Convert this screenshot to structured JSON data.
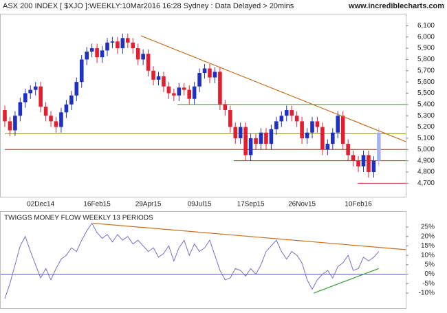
{
  "header": {
    "title": "ASX 200 INDEX [ $XJO ]:WEEKLY:10Mar2016 16:28 Sydney : Data Delayed > 20mins",
    "site": "www.incrediblecharts.com"
  },
  "chart_data": [
    {
      "type": "candlestick",
      "categories": [
        null,
        null,
        null,
        null,
        null,
        null,
        null,
        "02Dec14",
        null,
        null,
        null,
        null,
        null,
        null,
        null,
        null,
        null,
        null,
        "16Feb15",
        null,
        null,
        null,
        null,
        null,
        null,
        null,
        null,
        null,
        "29Apr15",
        null,
        null,
        null,
        null,
        null,
        null,
        null,
        null,
        null,
        "09Jul15",
        null,
        null,
        null,
        null,
        null,
        null,
        null,
        null,
        null,
        "17Sep15",
        null,
        null,
        null,
        null,
        null,
        null,
        null,
        null,
        null,
        "26Nov15",
        null,
        null,
        null,
        null,
        null,
        null,
        null,
        null,
        null,
        null,
        "10Feb16",
        null,
        null,
        null,
        null
      ],
      "open": [
        5350,
        5250,
        5170,
        5300,
        5420,
        5500,
        5530,
        5560,
        5380,
        5300,
        5250,
        5200,
        5330,
        5400,
        5480,
        5600,
        5800,
        5870,
        5900,
        5820,
        5880,
        5950,
        5960,
        5900,
        5990,
        5950,
        5900,
        5800,
        5850,
        5700,
        5620,
        5650,
        5560,
        5500,
        5480,
        5550,
        5530,
        5450,
        5560,
        5680,
        5720,
        5640,
        5690,
        5400,
        5350,
        5200,
        5100,
        5200,
        4950,
        5100,
        5050,
        5150,
        5050,
        5180,
        5250,
        5300,
        5350,
        5300,
        5250,
        5100,
        5150,
        5250,
        5200,
        5000,
        5050,
        5150,
        5300,
        5050,
        4950,
        4900,
        4850,
        4950,
        4800,
        4900
      ],
      "high": [
        5390,
        5290,
        5340,
        5460,
        5540,
        5570,
        5600,
        5600,
        5420,
        5340,
        5290,
        5370,
        5440,
        5520,
        5640,
        5840,
        5910,
        5940,
        5940,
        5920,
        5990,
        6000,
        6000,
        6030,
        6030,
        5990,
        5940,
        5890,
        5890,
        5740,
        5690,
        5690,
        5600,
        5540,
        5590,
        5590,
        5570,
        5600,
        5720,
        5760,
        5760,
        5730,
        5730,
        5440,
        5390,
        5240,
        5240,
        5240,
        5140,
        5140,
        5190,
        5190,
        5220,
        5290,
        5340,
        5390,
        5390,
        5340,
        5290,
        5190,
        5290,
        5290,
        5240,
        5090,
        5190,
        5340,
        5340,
        5090,
        4990,
        4940,
        4990,
        4990,
        4940,
        5190
      ],
      "low": [
        5200,
        5120,
        5120,
        5250,
        5370,
        5450,
        5480,
        5330,
        5250,
        5200,
        5150,
        5150,
        5280,
        5350,
        5430,
        5550,
        5750,
        5820,
        5770,
        5770,
        5830,
        5900,
        5850,
        5850,
        5900,
        5850,
        5750,
        5750,
        5650,
        5570,
        5570,
        5510,
        5450,
        5430,
        5430,
        5480,
        5400,
        5400,
        5510,
        5630,
        5590,
        5590,
        5350,
        5300,
        5150,
        5050,
        5050,
        4900,
        4900,
        5000,
        5000,
        5000,
        5000,
        5130,
        5200,
        5250,
        5250,
        5200,
        5050,
        5050,
        5100,
        5150,
        4950,
        4950,
        5000,
        5100,
        5000,
        4900,
        4850,
        4800,
        4800,
        4750,
        4750,
        4850
      ],
      "close": [
        5250,
        5170,
        5300,
        5420,
        5500,
        5530,
        5560,
        5380,
        5300,
        5250,
        5200,
        5330,
        5400,
        5480,
        5600,
        5800,
        5870,
        5900,
        5820,
        5880,
        5950,
        5960,
        5900,
        5990,
        5950,
        5900,
        5800,
        5850,
        5700,
        5620,
        5650,
        5560,
        5500,
        5480,
        5550,
        5530,
        5450,
        5560,
        5680,
        5720,
        5640,
        5690,
        5400,
        5350,
        5200,
        5100,
        5200,
        4950,
        5100,
        5050,
        5150,
        5050,
        5180,
        5250,
        5300,
        5350,
        5300,
        5250,
        5100,
        5150,
        5250,
        5200,
        5000,
        5050,
        5150,
        5300,
        5050,
        4950,
        4900,
        4850,
        4950,
        4800,
        4900,
        5150
      ],
      "up_color": "#2030c0",
      "down_color": "#e02030",
      "last_color": "#a8b4f0",
      "ylim": [
        4580,
        6200
      ],
      "yticks": [
        {
          "value": 4700,
          "label": "4,700"
        },
        {
          "value": 4800,
          "label": "4,800"
        },
        {
          "value": 4900,
          "label": "4,900"
        },
        {
          "value": 5000,
          "label": "5,000"
        },
        {
          "value": 5100,
          "label": "5,100"
        },
        {
          "value": 5200,
          "label": "5,200"
        },
        {
          "value": 5300,
          "label": "5,300"
        },
        {
          "value": 5400,
          "label": "5,400"
        },
        {
          "value": 5500,
          "label": "5,500"
        },
        {
          "value": 5600,
          "label": "5,600"
        },
        {
          "value": 5700,
          "label": "5,700"
        },
        {
          "value": 5800,
          "label": "5,800"
        },
        {
          "value": 5900,
          "label": "5,900"
        },
        {
          "value": 6000,
          "label": "6,000"
        },
        {
          "value": 6100,
          "label": "6,100"
        }
      ],
      "hlines": [
        {
          "y": 5400,
          "from": 33.7,
          "color": "#4a8a3a"
        },
        {
          "y": 5140,
          "from": 0,
          "color": "#8a8a2a"
        },
        {
          "y": 5000,
          "from": 0,
          "color": "#d02020"
        },
        {
          "y": 4900,
          "from": 44.7,
          "color": "#d02020"
        },
        {
          "y": 4700,
          "from": 68.9,
          "color": "#d02020"
        }
      ],
      "trendlines": [
        {
          "x": [
            26.6,
            78.3
          ],
          "y": [
            6010,
            5070
          ],
          "color": "#c87020"
        }
      ]
    },
    {
      "type": "line",
      "title": "TWIGGS MONEY FLOW WEEKLY 13 PERIODS",
      "values": [
        -13,
        -5,
        5,
        15,
        20,
        12,
        5,
        -2,
        3,
        -3,
        3,
        8,
        10,
        14,
        12,
        18,
        23,
        27,
        22,
        19,
        21,
        17,
        21,
        18,
        20,
        16,
        18,
        15,
        12,
        14,
        9,
        11,
        15,
        7,
        14,
        18,
        10,
        16,
        12,
        14,
        18,
        10,
        2,
        -3,
        -2,
        3,
        2,
        -1,
        3,
        0,
        5,
        12,
        15,
        18,
        12,
        8,
        12,
        10,
        6,
        -3,
        -8,
        -3,
        0,
        2,
        -2,
        4,
        6,
        10,
        2,
        3,
        9,
        7,
        9,
        12
      ],
      "color": "#7070c8",
      "zero_color": "#5050b0",
      "ylim": [
        -18,
        33
      ],
      "yticks": [
        {
          "value": 25,
          "label": "25%"
        },
        {
          "value": 20,
          "label": "20%"
        },
        {
          "value": 15,
          "label": "15%"
        },
        {
          "value": 10,
          "label": "10%"
        },
        {
          "value": 5,
          "label": "5%"
        },
        {
          "value": 0,
          "label": "0%"
        },
        {
          "value": -5,
          "label": "-5%"
        },
        {
          "value": -10,
          "label": "-10%"
        }
      ],
      "trendlines": [
        {
          "x": [
            17.2,
            78.3
          ],
          "y": [
            27,
            13
          ],
          "color": "#c87020"
        },
        {
          "x": [
            60.3,
            73
          ],
          "y": [
            -10,
            3
          ],
          "color": "#30a030"
        }
      ]
    }
  ]
}
